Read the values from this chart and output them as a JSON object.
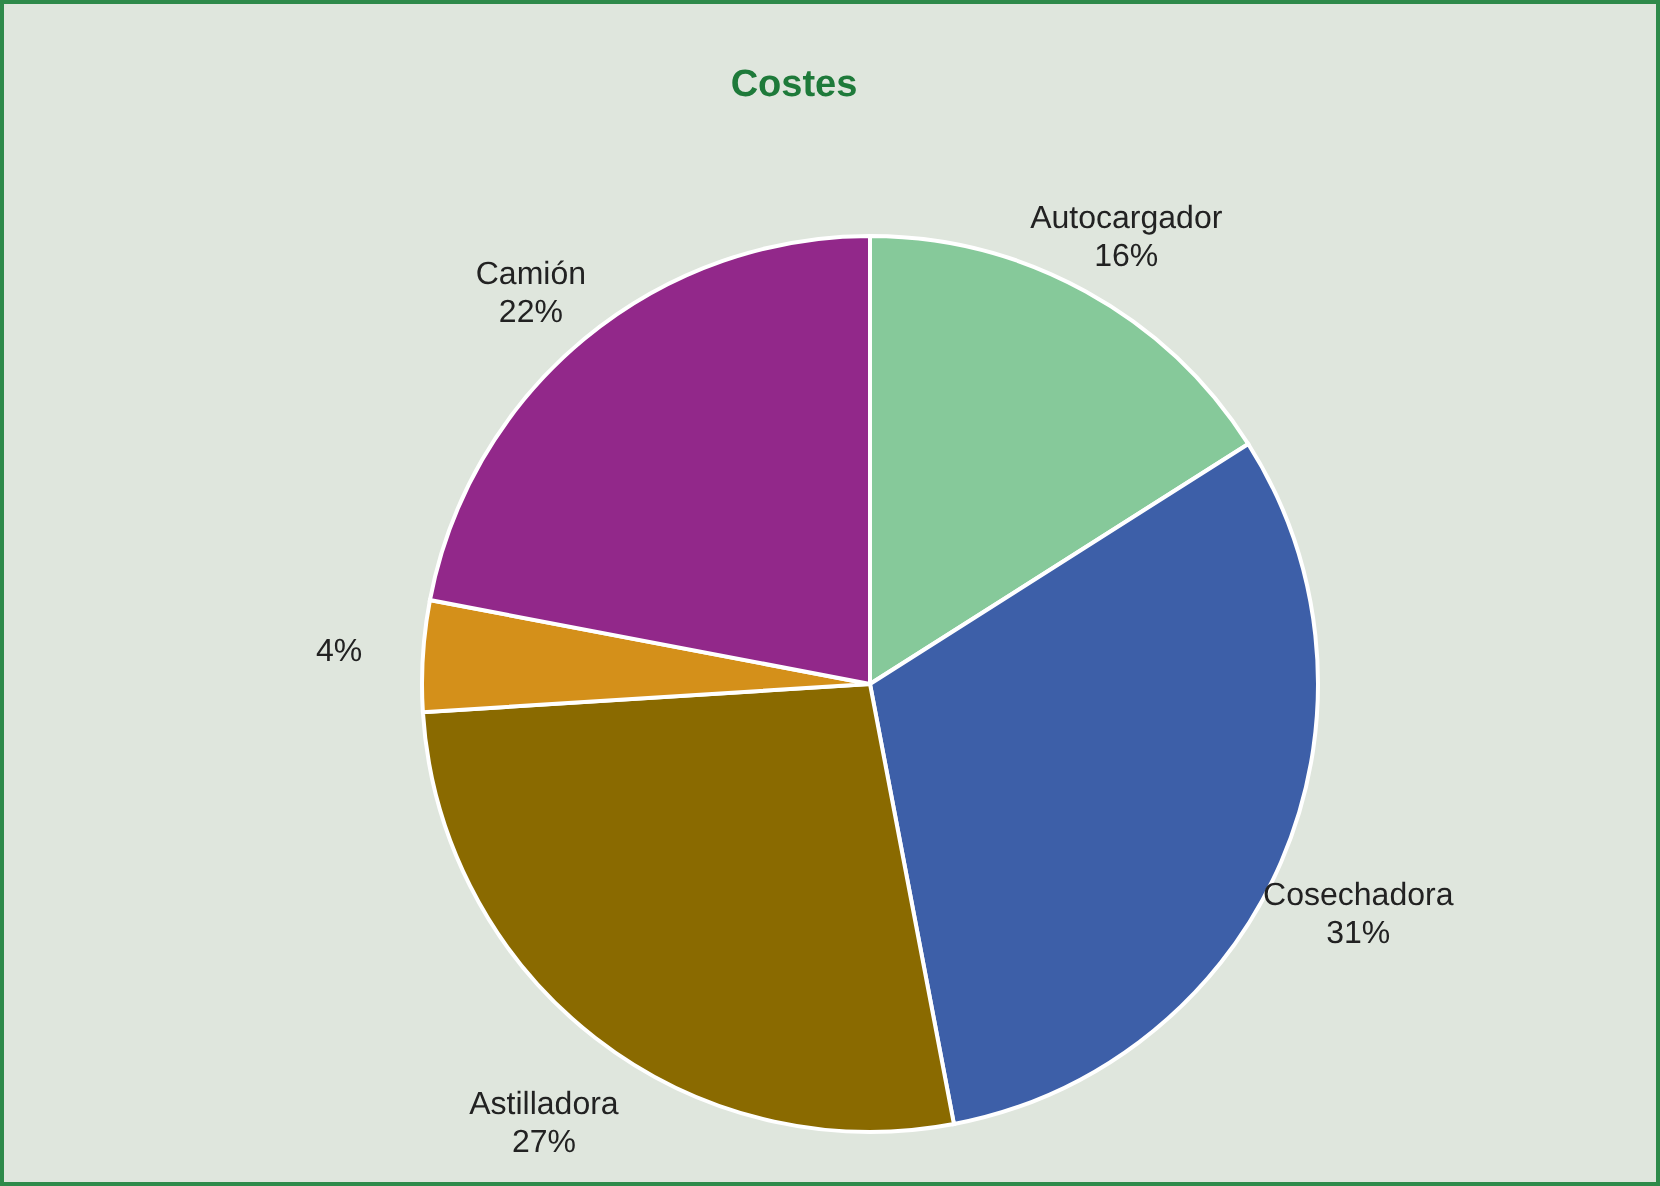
{
  "chart_data": {
    "type": "pie",
    "title": "Costes",
    "categories": [
      "Autocargador",
      "Cosechadora",
      "Astilladora",
      null,
      "Camión"
    ],
    "values": [
      16,
      31,
      27,
      4,
      22
    ],
    "colors": [
      "#86c99a",
      "#3d5fa8",
      "#8a6a00",
      "#d4901a",
      "#92288a"
    ],
    "value_labels": [
      "16%",
      "31%",
      "27%",
      "4%",
      "22%"
    ],
    "legend": false
  }
}
